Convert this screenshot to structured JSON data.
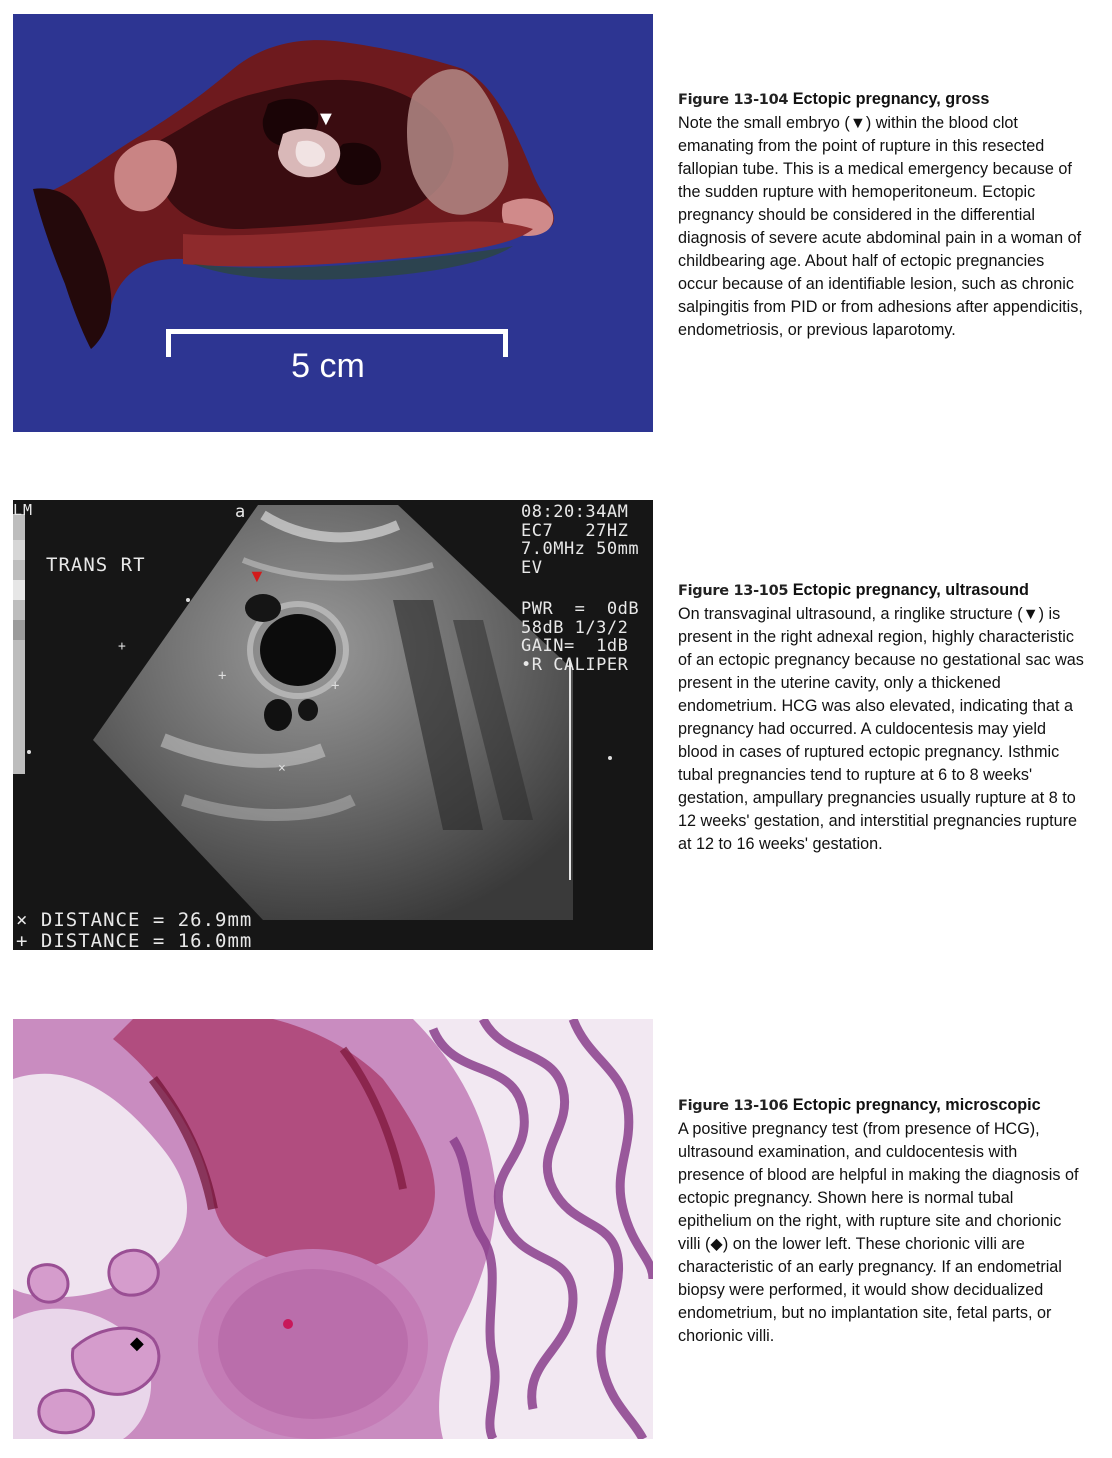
{
  "figures": [
    {
      "number": "Figure 13-104",
      "title": "Ectopic pregnancy, gross",
      "body": "Note the small embryo (▼) within the blood clot emanating from the point of rupture in this resected fallopian tube. This is a medical emergency because of the sudden rupture with hemoperitoneum. Ectopic pregnancy should be considered in the differential diagnosis of severe acute abdominal pain in a woman of childbearing age. About half of ectopic pregnancies occur because of an identifiable lesion, such as chronic salpingitis from PID or from adhesions after appendicitis, endometriosis, or previous laparotomy.",
      "scale_label": "5 cm",
      "marker": "▼"
    },
    {
      "number": "Figure 13-105",
      "title": "Ectopic pregnancy, ultrasound",
      "body": "On transvaginal ultrasound, a ringlike structure (▼) is present in the right adnexal region, highly characteristic of an ectopic pregnancy because no gestational sac was present in the uterine cavity, only a thickened endometrium. HCG was also elevated, indicating that a pregnancy had occurred. A culdocentesis may yield blood in cases of ruptured ectopic pregnancy. Isthmic tubal pregnancies tend to rupture at 6 to 8 weeks' gestation, ampullary pregnancies usually rupture at 8 to 12 weeks' gestation, and interstitial pregnancies rupture at 12 to 16 weeks' gestation.",
      "marker": "▼",
      "ultrasound": {
        "corner_label": "LM",
        "probe_mark": "a",
        "view_label": "TRANS RT",
        "header_lines": "08:20:34AM\nEC7   27HZ\n7.0MHz 50mm\nEV",
        "settings_lines": "PWR  =  0dB\n58dB 1/3/2\nGAIN=  1dB\n•R CALIPER",
        "distance_x": "× DISTANCE = 26.9mm",
        "distance_plus": "+ DISTANCE = 16.0mm"
      }
    },
    {
      "number": "Figure 13-106",
      "title": "Ectopic pregnancy, microscopic",
      "body": "A positive pregnancy test (from presence of HCG), ultrasound examination, and culdocentesis with presence of blood are helpful in making the diagnosis of ectopic pregnancy. Shown here is normal tubal epithelium on the right, with rupture site and chorionic villi (◆) on the lower left. These chorionic villi are characteristic of an early pregnancy. If an endometrial biopsy were performed, it would show decidualized endometrium, but no implantation site, fetal parts, or chorionic villi.",
      "marker": "◆"
    }
  ],
  "colors": {
    "specimen_background": "#2d3592",
    "ultrasound_background": "#161616",
    "histology_background": "#c98cc0",
    "ultrasound_marker": "#d21a1a"
  }
}
